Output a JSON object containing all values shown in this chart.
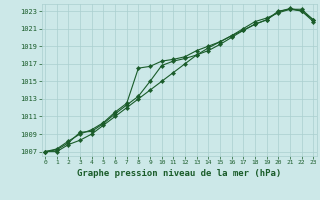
{
  "title": "Graphe pression niveau de la mer (hPa)",
  "background_color": "#cce8e8",
  "grid_color": "#aacfcf",
  "line_color": "#1a5c2a",
  "x_values": [
    0,
    1,
    2,
    3,
    4,
    5,
    6,
    7,
    8,
    9,
    10,
    11,
    12,
    13,
    14,
    15,
    16,
    17,
    18,
    19,
    20,
    21,
    22,
    23
  ],
  "line1": [
    1007.0,
    1007.3,
    1008.2,
    1009.0,
    1009.5,
    1010.3,
    1011.5,
    1012.5,
    1016.5,
    1016.7,
    1017.3,
    1017.5,
    1017.8,
    1018.5,
    1019.0,
    1019.5,
    1020.2,
    1020.8,
    1021.5,
    1022.0,
    1022.9,
    1023.3,
    1023.0,
    1022.0
  ],
  "line2": [
    1007.0,
    1007.2,
    1008.0,
    1009.2,
    1009.3,
    1010.2,
    1011.3,
    1012.3,
    1013.3,
    1015.0,
    1016.8,
    1017.3,
    1017.6,
    1018.0,
    1018.5,
    1019.2,
    1020.0,
    1020.8,
    1021.5,
    1022.0,
    1023.0,
    1023.2,
    1023.0,
    1021.8
  ],
  "line3": [
    1007.0,
    1007.0,
    1007.8,
    1008.3,
    1009.0,
    1010.0,
    1011.0,
    1012.0,
    1013.0,
    1014.0,
    1015.0,
    1016.0,
    1017.0,
    1018.0,
    1018.8,
    1019.5,
    1020.2,
    1021.0,
    1021.8,
    1022.2,
    1022.8,
    1023.2,
    1023.2,
    1022.0
  ],
  "ylim": [
    1006.5,
    1023.8
  ],
  "xlim": [
    -0.3,
    23.3
  ],
  "yticks": [
    1007,
    1009,
    1011,
    1013,
    1015,
    1017,
    1019,
    1021,
    1023
  ],
  "xticks": [
    0,
    1,
    2,
    3,
    4,
    5,
    6,
    7,
    8,
    9,
    10,
    11,
    12,
    13,
    14,
    15,
    16,
    17,
    18,
    19,
    20,
    21,
    22,
    23
  ]
}
